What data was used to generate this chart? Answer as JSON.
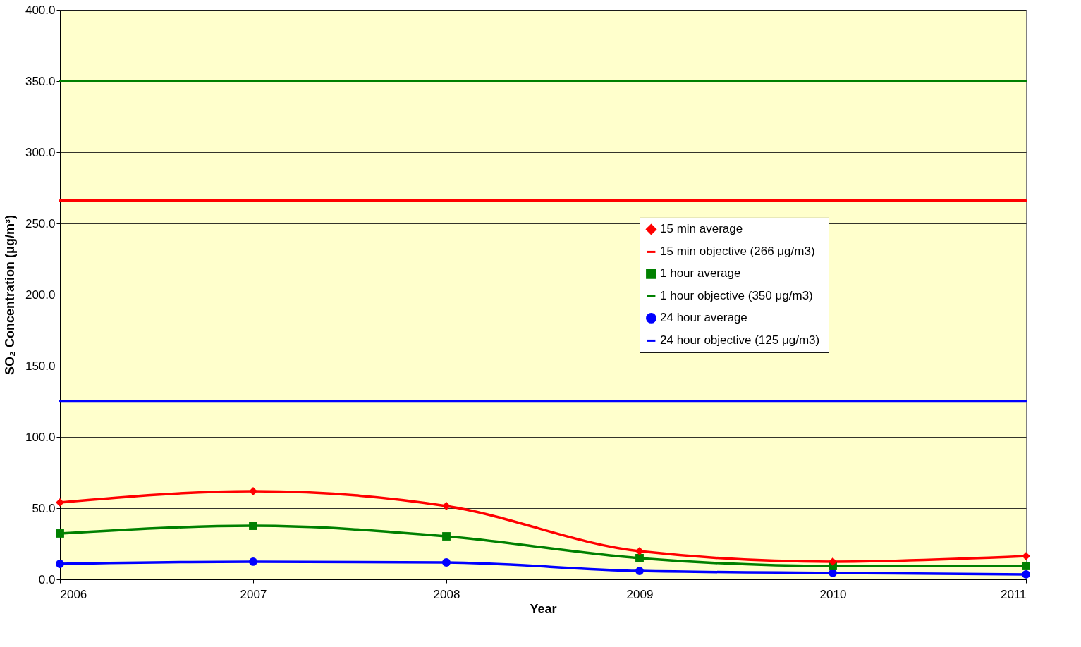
{
  "chart_data": {
    "type": "line",
    "xlabel": "Year",
    "ylabel": "SO₂ Concentration (μg/m³)",
    "x": [
      2006,
      2007,
      2008,
      2009,
      2010,
      2011
    ],
    "series": [
      {
        "name": "15 min average",
        "color": "#ff0000",
        "marker": "diamond",
        "values": [
          54.0,
          61.9,
          51.5,
          19.8,
          12.4,
          16.3
        ]
      },
      {
        "name": "15 min objective (266 μg/m3)",
        "color": "#ff0000",
        "values": [
          266,
          266,
          266,
          266,
          266,
          266
        ]
      },
      {
        "name": "1 hour average",
        "color": "#008000",
        "marker": "square",
        "values": [
          32.2,
          37.6,
          30.2,
          14.9,
          9.4,
          9.4
        ]
      },
      {
        "name": "1 hour objective  (350 μg/m3)",
        "color": "#008000",
        "values": [
          350,
          350,
          350,
          350,
          350,
          350
        ]
      },
      {
        "name": "24 hour average",
        "color": "#0000ff",
        "marker": "circle",
        "values": [
          10.9,
          12.4,
          11.9,
          5.9,
          4.5,
          3.5
        ]
      },
      {
        "name": "24 hour objective  (125 μg/m3)",
        "color": "#0000ff",
        "values": [
          125,
          125,
          125,
          125,
          125,
          125
        ]
      }
    ],
    "xlim": [
      2006,
      2011
    ],
    "xticks": [
      2006,
      2007,
      2008,
      2009,
      2010,
      2011
    ],
    "ylim": [
      0,
      400
    ],
    "yticks": [
      {
        "value": 0,
        "label": "0.0"
      },
      {
        "value": 50,
        "label": "50.0"
      },
      {
        "value": 100,
        "label": "100.0"
      },
      {
        "value": 150,
        "label": "150.0"
      },
      {
        "value": 200,
        "label": "200.0"
      },
      {
        "value": 250,
        "label": "250.0"
      },
      {
        "value": 300,
        "label": "300.0"
      },
      {
        "value": 350,
        "label": "350.0"
      },
      {
        "value": 400,
        "label": "400.0"
      }
    ],
    "grid": "y",
    "legend": "right"
  }
}
